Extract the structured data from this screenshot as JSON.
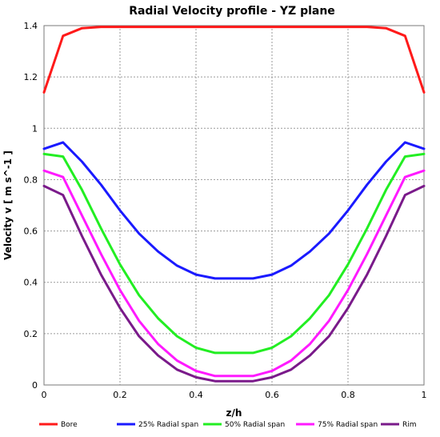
{
  "chart_data": {
    "type": "line",
    "title": "Radial Velocity profile - YZ plane",
    "xlabel": "z/h",
    "ylabel": "Velocity v [ m s^-1 ]",
    "xlim": [
      0,
      1
    ],
    "ylim": [
      0,
      1.4
    ],
    "xticks": [
      "0",
      "0.2",
      "0.4",
      "0.6",
      "0.8",
      "1"
    ],
    "yticks": [
      "0",
      "0.2",
      "0.4",
      "0.6",
      "0.8",
      "1",
      "1.2",
      "1.4"
    ],
    "grid": true,
    "legend_position": "bottom",
    "x": [
      0,
      0.05,
      0.1,
      0.15,
      0.2,
      0.25,
      0.3,
      0.35,
      0.4,
      0.45,
      0.5,
      0.55,
      0.6,
      0.65,
      0.7,
      0.75,
      0.8,
      0.85,
      0.9,
      0.95,
      1
    ],
    "series": [
      {
        "name": "Bore",
        "color": "#ff1a1a",
        "values": [
          1.14,
          1.36,
          1.39,
          1.395,
          1.395,
          1.395,
          1.395,
          1.395,
          1.395,
          1.395,
          1.395,
          1.395,
          1.395,
          1.395,
          1.395,
          1.395,
          1.395,
          1.395,
          1.39,
          1.36,
          1.14
        ]
      },
      {
        "name": "25% Radial span",
        "color": "#1a1aff",
        "values": [
          0.92,
          0.945,
          0.87,
          0.78,
          0.68,
          0.59,
          0.52,
          0.465,
          0.43,
          0.415,
          0.415,
          0.415,
          0.43,
          0.465,
          0.52,
          0.59,
          0.68,
          0.78,
          0.87,
          0.945,
          0.92
        ]
      },
      {
        "name": "50% Radial span",
        "color": "#22ee22",
        "values": [
          0.9,
          0.89,
          0.76,
          0.61,
          0.47,
          0.35,
          0.26,
          0.19,
          0.145,
          0.125,
          0.125,
          0.125,
          0.145,
          0.19,
          0.26,
          0.35,
          0.47,
          0.61,
          0.76,
          0.89,
          0.9
        ]
      },
      {
        "name": "75% Radial span",
        "color": "#ff1aff",
        "values": [
          0.835,
          0.81,
          0.66,
          0.51,
          0.37,
          0.25,
          0.16,
          0.095,
          0.055,
          0.035,
          0.035,
          0.035,
          0.055,
          0.095,
          0.16,
          0.25,
          0.37,
          0.51,
          0.66,
          0.81,
          0.835
        ]
      },
      {
        "name": "Rim",
        "color": "#7a1a8a",
        "values": [
          0.775,
          0.74,
          0.58,
          0.43,
          0.3,
          0.19,
          0.115,
          0.06,
          0.03,
          0.015,
          0.015,
          0.015,
          0.03,
          0.06,
          0.115,
          0.19,
          0.3,
          0.43,
          0.58,
          0.74,
          0.775
        ]
      }
    ]
  }
}
